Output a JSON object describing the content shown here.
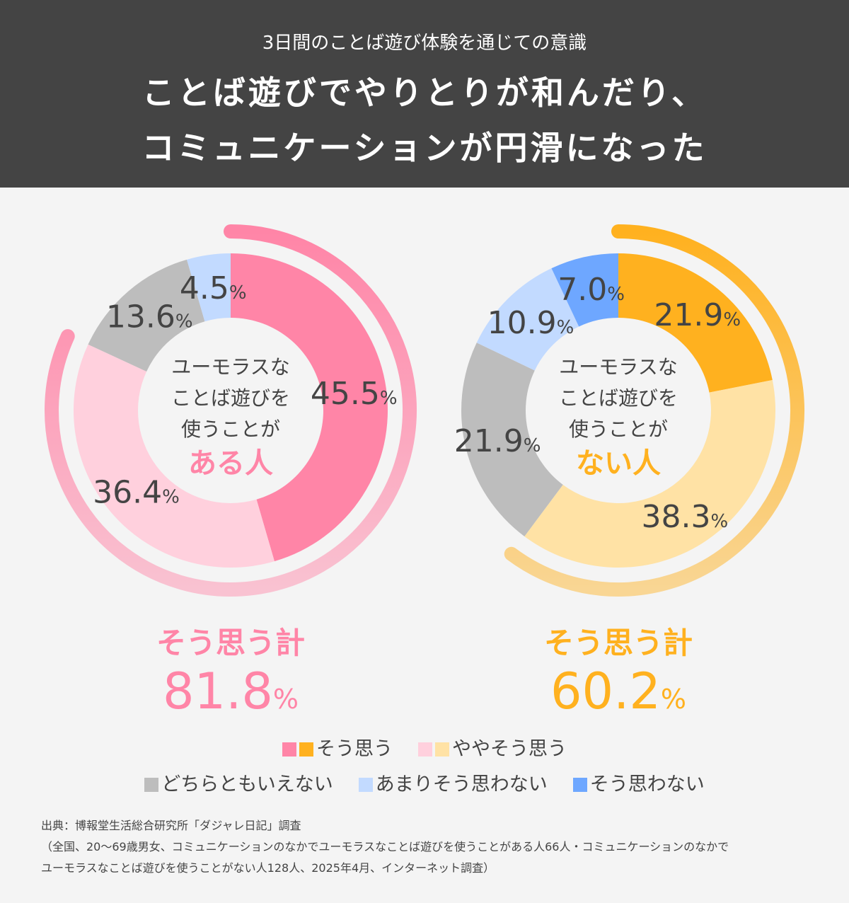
{
  "header": {
    "subtitle": "3日間のことば遊び体験を通じての意識",
    "title_line1": "ことば遊びでやりとりが和んだり、",
    "title_line2": "コミュニケーションが円滑になった"
  },
  "chart_data": [
    {
      "type": "pie",
      "variant": "donut",
      "center_text": [
        "ユーモラスな",
        "ことば遊びを",
        "使うことが"
      ],
      "center_highlight": "ある人",
      "accent": "#ff85a7",
      "categories": [
        "そう思う",
        "ややそう思う",
        "どちらともいえない",
        "あまりそう思わない",
        "そう思わない"
      ],
      "values": [
        45.5,
        36.4,
        13.6,
        4.5,
        0
      ],
      "labels": [
        "45.5",
        "36.4",
        "13.6",
        "4.5",
        ""
      ],
      "colors": [
        "#ff85a7",
        "#ffd0dd",
        "#bdbdbd",
        "#c2daff",
        "#6ea7ff"
      ],
      "total_label": "そう思う計",
      "total_value": "81.8",
      "total_percent": 81.8
    },
    {
      "type": "pie",
      "variant": "donut",
      "center_text": [
        "ユーモラスな",
        "ことば遊びを",
        "使うことが"
      ],
      "center_highlight": "ない人",
      "accent": "#ffb11f",
      "categories": [
        "そう思う",
        "ややそう思う",
        "どちらともいえない",
        "あまりそう思わない",
        "そう思わない"
      ],
      "values": [
        21.9,
        38.3,
        21.9,
        10.9,
        7.0
      ],
      "labels": [
        "21.9",
        "38.3",
        "21.9",
        "10.9",
        "7.0"
      ],
      "colors": [
        "#ffb11f",
        "#ffe2a5",
        "#bdbdbd",
        "#c2daff",
        "#6ea7ff"
      ],
      "total_label": "そう思う計",
      "total_value": "60.2",
      "total_percent": 60.2
    }
  ],
  "unit": "%",
  "legend": [
    {
      "label": "そう思う",
      "colors": [
        "#ff85a7",
        "#ffb11f"
      ]
    },
    {
      "label": "ややそう思う",
      "colors": [
        "#ffd0dd",
        "#ffe2a5"
      ]
    },
    {
      "label": "どちらともいえない",
      "colors": [
        "#bdbdbd"
      ]
    },
    {
      "label": "あまりそう思わない",
      "colors": [
        "#c2daff"
      ]
    },
    {
      "label": "そう思わない",
      "colors": [
        "#6ea7ff"
      ]
    }
  ],
  "source": {
    "line1": "出典：博報堂生活総合研究所「ダジャレ日記」調査",
    "line2": "（全国、20〜69歳男女、コミュニケーションのなかでユーモラスなことば遊びを使うことがある人66人・コミュニケーションのなかで",
    "line3": "ユーモラスなことば遊びを使うことがない人128人、2025年4月、インターネット調査）"
  }
}
